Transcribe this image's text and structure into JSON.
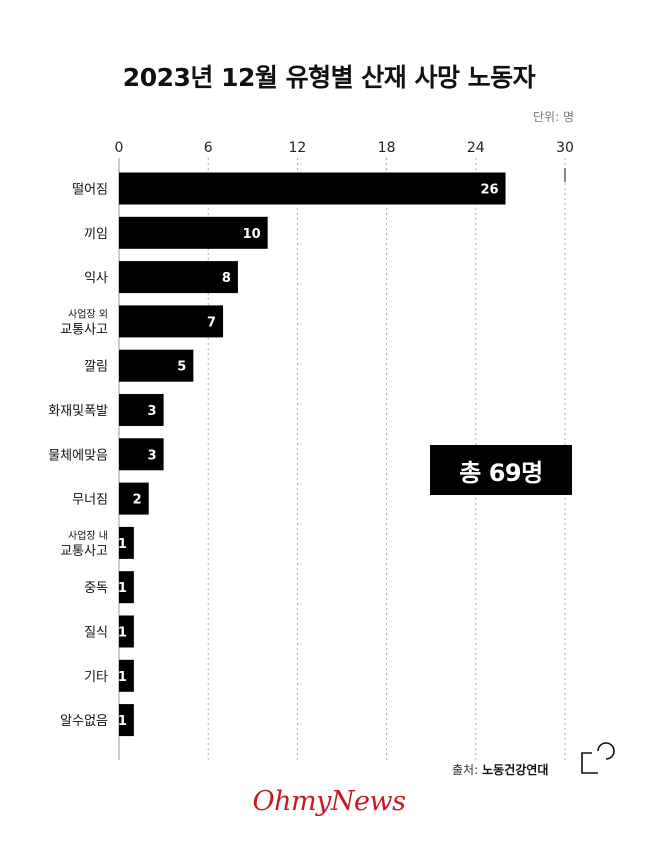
{
  "title": "2023년 12월 유형별 산재 사망 노동자",
  "unit_label": "단위: 명",
  "total_label": "총 69명",
  "source_label": "출처:",
  "source_name": "노동건강연대",
  "brand": "OhmyNews",
  "colors": {
    "bar": "#000000",
    "bar_text": "#ffffff",
    "grid": "#999999",
    "brand": "#c8191f"
  },
  "chart_data": {
    "type": "bar",
    "orientation": "horizontal",
    "title": "2023년 12월 유형별 산재 사망 노동자",
    "xlabel": "",
    "ylabel": "",
    "xlim": [
      0,
      30
    ],
    "xticks": [
      0,
      6,
      12,
      18,
      24,
      30
    ],
    "grid": true,
    "categories": [
      "떨어짐",
      "끼임",
      "익사",
      [
        "사업장 외",
        "교통사고"
      ],
      "깔림",
      "화재및폭발",
      "물체에맞음",
      "무너짐",
      [
        "사업장 내",
        "교통사고"
      ],
      "중독",
      "질식",
      "기타",
      "알수없음"
    ],
    "values": [
      26,
      10,
      8,
      7,
      5,
      3,
      3,
      2,
      1,
      1,
      1,
      1,
      1
    ]
  }
}
